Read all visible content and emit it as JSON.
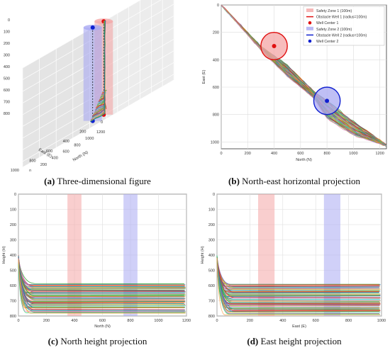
{
  "captions": {
    "a": {
      "tag": "(a)",
      "text": "Three-dimensional figure"
    },
    "b": {
      "tag": "(b)",
      "text": "North-east horizontal projection"
    },
    "c": {
      "tag": "(c)",
      "text": "North height projection"
    },
    "d": {
      "tag": "(d)",
      "text": "East height projection"
    }
  },
  "colors": {
    "zone1": "#f4a6a6",
    "zone2": "#a9a9f2",
    "center1": "#e01010",
    "center2": "#1020d0",
    "palette": [
      "#2ca02c",
      "#1f77b4",
      "#ff7f0e",
      "#d62728",
      "#9467bd",
      "#8c564b",
      "#17becf",
      "#bcbd22",
      "#e377c2",
      "#7f7f7f",
      "#2ecc71",
      "#ff9f40"
    ]
  },
  "chart_data": [
    {
      "id": "a",
      "type": "line",
      "title": "",
      "xlabel": "North (N)",
      "ylabel": "East (E)",
      "zlabel": "",
      "north_ticks": [
        "0",
        "200",
        "400",
        "600",
        "800",
        "1000",
        "1200"
      ],
      "east_ticks": [
        "0",
        "200",
        "400",
        "600",
        "800",
        "1000"
      ],
      "height_ticks": [
        "0",
        "100",
        "200",
        "300",
        "400",
        "500",
        "600",
        "700",
        "800"
      ],
      "ranges": {
        "north": [
          0,
          1200
        ],
        "east": [
          0,
          1000
        ],
        "height": [
          0,
          850
        ]
      },
      "zones": [
        {
          "north": 400,
          "east": 300,
          "radius": 100,
          "center_height": [
            0,
            800
          ]
        },
        {
          "north": 800,
          "east": 700,
          "radius": 100,
          "center_height": [
            0,
            800
          ]
        }
      ],
      "grid": true
    },
    {
      "id": "b",
      "type": "line",
      "xlabel": "North (N)",
      "ylabel": "East (E)",
      "x_ticks": [
        0,
        200,
        400,
        600,
        800,
        1000,
        1200
      ],
      "y_ticks": [
        0,
        200,
        400,
        600,
        800,
        1000
      ],
      "xlim": [
        0,
        1250
      ],
      "ylim": [
        1050,
        0
      ],
      "legend": {
        "placement": "top-right",
        "entries": [
          {
            "label": "Safety Zone 1 (100m)",
            "kind": "patch",
            "color": "#f4a6a6"
          },
          {
            "label": "Obstacle Well 1 (radius=100m)",
            "kind": "line",
            "color": "#e01010"
          },
          {
            "label": "Well Center 1",
            "kind": "dot",
            "color": "#e01010"
          },
          {
            "label": "Safety Zone 2 (100m)",
            "kind": "patch",
            "color": "#a9a9f2"
          },
          {
            "label": "Obstacle Well 2 (radius=100m)",
            "kind": "line",
            "color": "#1020d0"
          },
          {
            "label": "Well Center 2",
            "kind": "dot",
            "color": "#1020d0"
          }
        ]
      },
      "zones": [
        {
          "north": 400,
          "east": 300,
          "radius": 100
        },
        {
          "north": 800,
          "east": 700,
          "radius": 100
        }
      ],
      "path_envelope": {
        "x": [
          0,
          300,
          500,
          700,
          800,
          1000,
          1250
        ],
        "y_low": [
          0,
          300,
          440,
          630,
          700,
          850,
          1020
        ],
        "y_high": [
          0,
          330,
          520,
          680,
          830,
          950,
          1030
        ]
      },
      "grid": true
    },
    {
      "id": "c",
      "type": "line",
      "xlabel": "North (N)",
      "ylabel": "Height (H)",
      "x_ticks": [
        0,
        200,
        400,
        600,
        800,
        1000,
        1200
      ],
      "y_ticks": [
        0,
        100,
        200,
        300,
        400,
        500,
        600,
        700,
        800
      ],
      "xlim": [
        0,
        1200
      ],
      "ylim": [
        800,
        0
      ],
      "zones": [
        {
          "from": 350,
          "to": 450
        },
        {
          "from": 750,
          "to": 850
        }
      ],
      "path_envelope": {
        "plateau_min": 590,
        "plateau_max": 780,
        "knee_x": 80
      },
      "grid": true
    },
    {
      "id": "d",
      "type": "line",
      "xlabel": "East (E)",
      "ylabel": "Height (H)",
      "x_ticks": [
        0,
        200,
        400,
        600,
        800,
        1000
      ],
      "y_ticks": [
        0,
        100,
        200,
        300,
        400,
        500,
        600,
        700,
        800
      ],
      "xlim": [
        0,
        1000
      ],
      "ylim": [
        800,
        0
      ],
      "zones": [
        {
          "from": 250,
          "to": 350
        },
        {
          "from": 650,
          "to": 750
        }
      ],
      "path_envelope": {
        "plateau_min": 590,
        "plateau_max": 790,
        "knee_x": 70
      },
      "grid": true
    }
  ]
}
